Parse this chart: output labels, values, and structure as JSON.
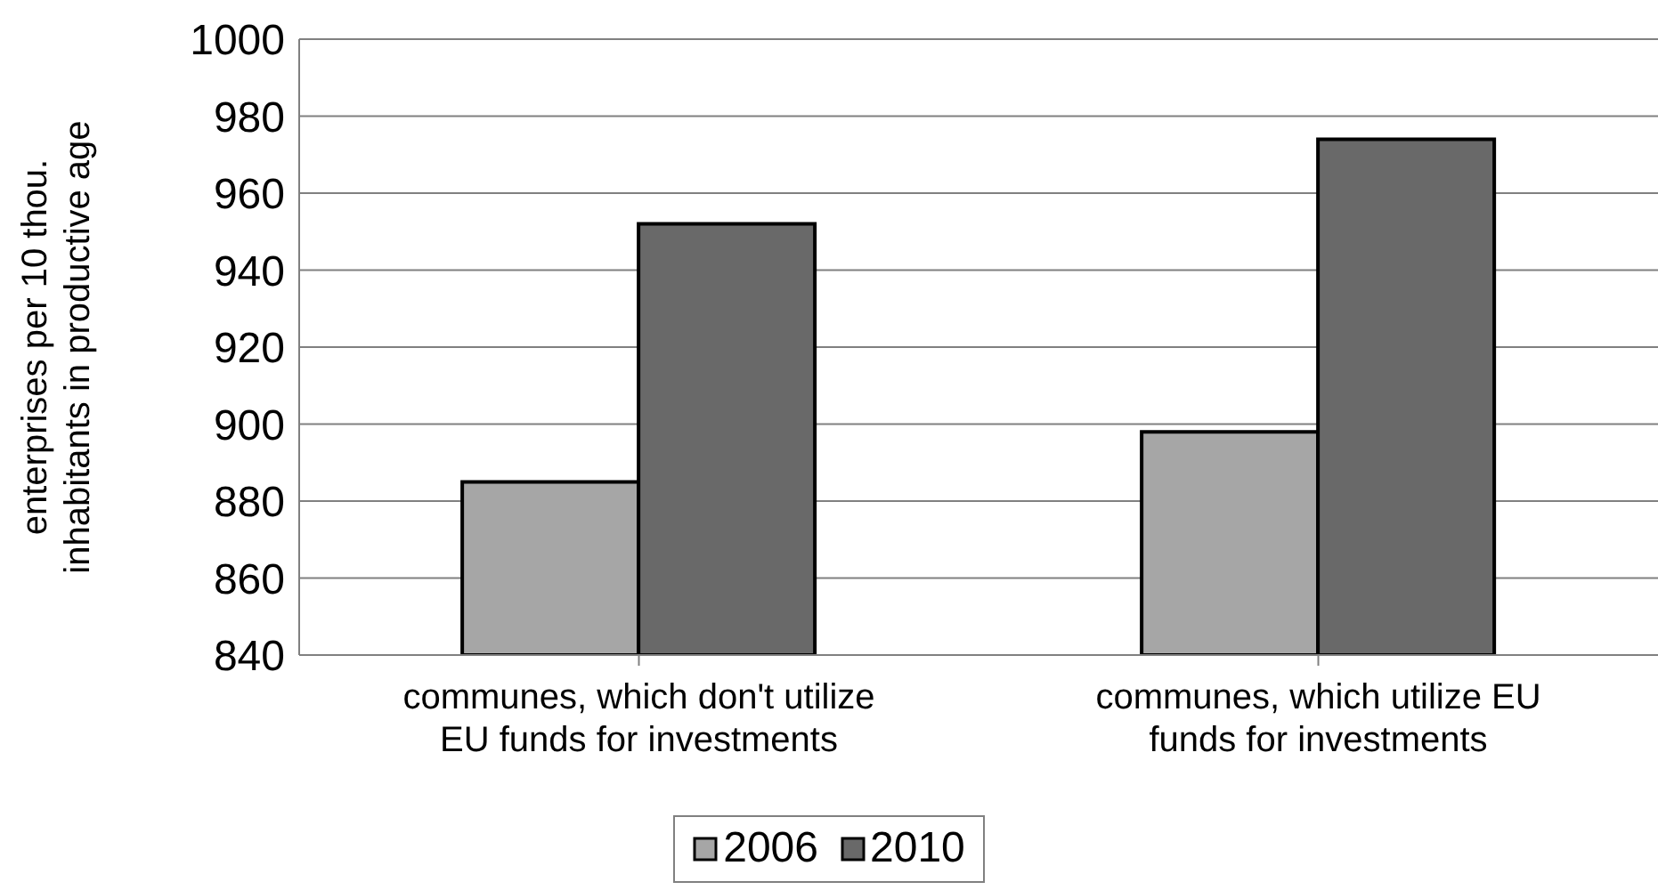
{
  "chart_data": {
    "type": "bar",
    "ylabel": "enterprises per 10 thou. inhabitants in productive age",
    "categories": [
      "communes, which don't utilize EU funds for investments",
      "communes, which utilize EU funds for investments"
    ],
    "series": [
      {
        "name": "2006",
        "color": "#a6a6a6",
        "values": [
          885,
          898
        ]
      },
      {
        "name": "2010",
        "color": "#696969",
        "values": [
          952,
          974
        ]
      }
    ],
    "ylim": [
      840,
      1000
    ],
    "yticks": [
      840,
      860,
      880,
      900,
      920,
      940,
      960,
      980,
      1000
    ],
    "grid": "y",
    "legend": "bottom"
  }
}
